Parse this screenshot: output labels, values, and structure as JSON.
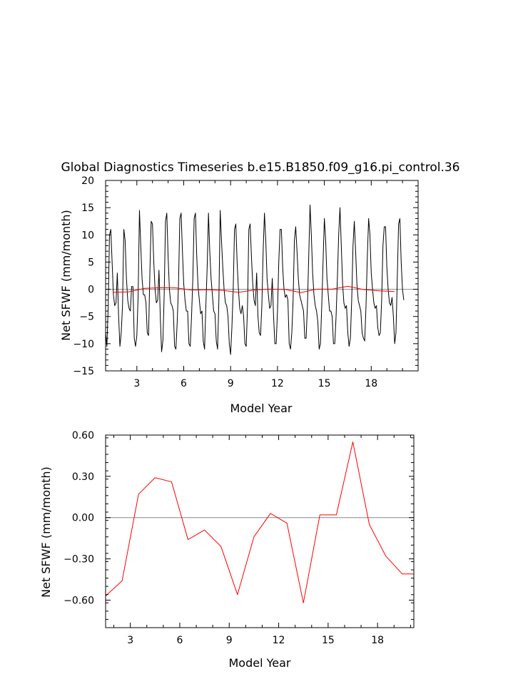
{
  "colors": {
    "monthly": "#000000",
    "annual": "#ff0000",
    "zero_line": "#888888",
    "frame": "#000000"
  },
  "chart_data": [
    {
      "type": "line",
      "title": "Global Diagnostics Timeseries b.e15.B1850.f09_g16.pi_control.36",
      "xlabel": "Model Year",
      "ylabel": "Net SFWF (mm/month)",
      "xlim": [
        1,
        21
      ],
      "ylim": [
        -15,
        20
      ],
      "xticks": [
        3,
        6,
        9,
        12,
        15,
        18
      ],
      "yticks": [
        -15,
        -10,
        -5,
        0,
        5,
        10,
        15,
        20
      ],
      "ytick_labels": [
        "−15",
        "−10",
        "−5",
        "0",
        "5",
        "10",
        "15",
        "20"
      ],
      "zero_line": 0,
      "series": [
        {
          "color": "#000000",
          "x_start": 1.0,
          "x_step": 0.0833333,
          "values": [
            -8.0,
            -10.5,
            -3.0,
            10.0,
            11.0,
            5.0,
            -1.0,
            -3.0,
            -2.5,
            3.0,
            -5.0,
            -10.5,
            -8.0,
            -3.0,
            11.0,
            9.0,
            2.0,
            -2.0,
            -3.5,
            -4.0,
            0.5,
            0.5,
            -9.0,
            -10.5,
            -8.5,
            -1.0,
            14.5,
            8.0,
            2.0,
            -1.0,
            -1.0,
            -2.5,
            -8.0,
            -8.5,
            3.0,
            12.5,
            12.0,
            5.0,
            0.0,
            -2.5,
            -2.0,
            3.5,
            -5.0,
            -11.5,
            -9.5,
            -1.0,
            12.5,
            14.0,
            6.0,
            0.0,
            -2.5,
            -3.0,
            -4.0,
            -10.5,
            -11.0,
            -6.0,
            1.0,
            13.0,
            14.0,
            7.0,
            1.0,
            -2.0,
            -4.0,
            -4.0,
            -10.0,
            -10.5,
            -5.0,
            2.0,
            13.0,
            14.0,
            6.0,
            0.5,
            -2.0,
            -4.5,
            -4.0,
            -9.5,
            -11.0,
            -3.0,
            4.0,
            14.0,
            7.0,
            2.0,
            -1.0,
            -4.0,
            -4.5,
            -9.5,
            -11.0,
            -2.0,
            14.5,
            9.0,
            4.0,
            0.0,
            -2.5,
            -3.0,
            -5.0,
            -10.0,
            -12.0,
            -7.0,
            0.0,
            11.0,
            12.0,
            5.0,
            0.0,
            -3.5,
            -4.5,
            -3.0,
            -5.0,
            -10.0,
            -10.5,
            -3.0,
            11.0,
            12.0,
            6.0,
            1.0,
            -2.0,
            -3.0,
            3.0,
            -5.0,
            -8.0,
            -8.5,
            -3.0,
            7.0,
            14.0,
            9.0,
            2.0,
            -1.0,
            -3.5,
            -3.0,
            2.0,
            -5.0,
            -10.0,
            -10.0,
            -4.0,
            5.0,
            11.0,
            11.0,
            4.0,
            0.0,
            -1.5,
            -1.0,
            -2.0,
            -10.0,
            -11.0,
            -8.0,
            -2.0,
            9.0,
            11.5,
            7.0,
            2.0,
            -1.0,
            -2.0,
            -3.0,
            -4.0,
            -9.0,
            -9.0,
            -3.0,
            6.0,
            15.5,
            10.0,
            3.0,
            -1.0,
            -3.0,
            -4.0,
            -6.0,
            -11.0,
            -10.0,
            -3.0,
            5.0,
            13.0,
            9.0,
            2.0,
            -1.0,
            -4.0,
            -4.0,
            -5.0,
            -10.0,
            -10.0,
            -5.0,
            2.0,
            10.0,
            15.0,
            8.0,
            1.0,
            -2.5,
            -3.5,
            -3.0,
            -8.0,
            -10.5,
            -9.0,
            -2.0,
            8.0,
            12.5,
            7.0,
            1.0,
            -2.0,
            -3.0,
            -4.0,
            -8.0,
            -9.0,
            -9.5,
            -3.0,
            6.0,
            13.0,
            10.0,
            3.0,
            0.0,
            -2.5,
            -3.5,
            -3.0,
            -7.0,
            -8.5,
            -8.0,
            -2.0,
            8.0,
            11.5,
            11.5,
            4.0,
            0.0,
            -2.5,
            -3.0,
            -1.5,
            -5.0,
            -10.0,
            -8.0,
            2.0,
            12.0,
            13.0,
            5.0,
            0.0,
            -2.0
          ]
        },
        {
          "color": "#ff0000",
          "x": [
            1.5,
            2.5,
            3.5,
            4.5,
            5.5,
            6.5,
            7.5,
            8.5,
            9.5,
            10.5,
            11.5,
            12.5,
            13.5,
            14.5,
            15.5,
            16.5,
            17.5,
            18.5,
            19.5
          ],
          "values": [
            -0.57,
            -0.46,
            0.17,
            0.29,
            0.26,
            -0.16,
            -0.09,
            -0.21,
            -0.56,
            -0.14,
            0.03,
            -0.04,
            -0.62,
            0.02,
            0.02,
            0.55,
            -0.05,
            -0.28,
            -0.41
          ]
        }
      ]
    },
    {
      "type": "line",
      "title": "",
      "xlabel": "Model Year",
      "ylabel": "Net SFWF (mm/month)",
      "xlim": [
        1.5,
        20.2
      ],
      "ylim": [
        -0.8,
        0.6
      ],
      "xticks": [
        3,
        6,
        9,
        12,
        15,
        18
      ],
      "yticks": [
        -0.6,
        -0.3,
        0.0,
        0.3,
        0.6
      ],
      "ytick_labels": [
        "−0.60",
        "−0.30",
        "0.00",
        "0.30",
        "0.60"
      ],
      "zero_line": 0,
      "series": [
        {
          "color": "#ff0000",
          "x": [
            1.5,
            2.5,
            3.5,
            4.5,
            5.5,
            6.5,
            7.5,
            8.5,
            9.5,
            10.5,
            11.5,
            12.5,
            13.5,
            14.5,
            15.5,
            16.5,
            17.5,
            18.5,
            19.5,
            20.2
          ],
          "values": [
            -0.57,
            -0.46,
            0.17,
            0.29,
            0.26,
            -0.16,
            -0.09,
            -0.21,
            -0.56,
            -0.14,
            0.03,
            -0.04,
            -0.62,
            0.02,
            0.02,
            0.55,
            -0.05,
            -0.28,
            -0.41,
            -0.41
          ]
        }
      ]
    }
  ]
}
